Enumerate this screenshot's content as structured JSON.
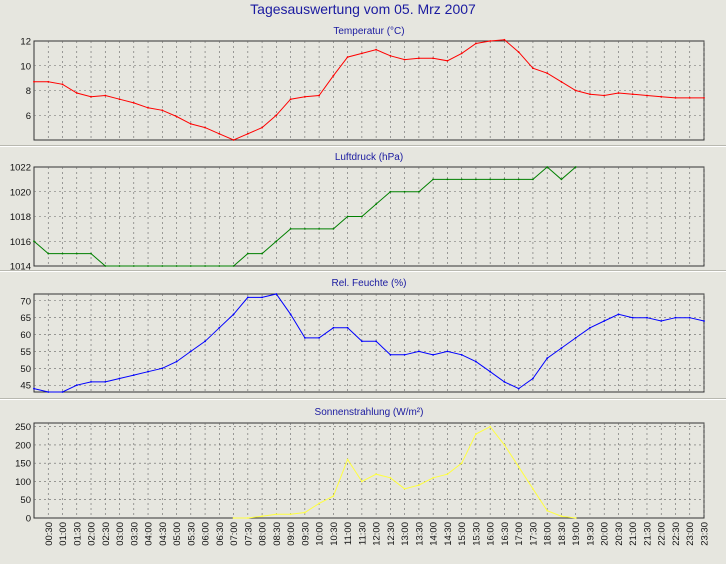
{
  "title": "Tagesauswertung vom 05. Mrz 2007",
  "x_labels": [
    "00:30",
    "01:00",
    "01:30",
    "02:00",
    "02:30",
    "03:00",
    "03:30",
    "04:00",
    "04:30",
    "05:00",
    "05:30",
    "06:00",
    "06:30",
    "07:00",
    "07:30",
    "08:00",
    "08:30",
    "09:00",
    "09:30",
    "10:00",
    "10:30",
    "11:00",
    "11:30",
    "12:00",
    "12:30",
    "13:00",
    "13:30",
    "14:00",
    "14:30",
    "15:00",
    "15:30",
    "16:00",
    "16:30",
    "17:00",
    "17:30",
    "18:00",
    "18:30",
    "19:00",
    "19:30",
    "20:00",
    "20:30",
    "21:00",
    "21:30",
    "22:00",
    "22:30",
    "23:00",
    "23:30"
  ],
  "chart_data": [
    {
      "type": "line",
      "title": "Temperatur (°C)",
      "color": "#ff0000",
      "ylim": [
        4,
        12
      ],
      "yticks": [
        6,
        8,
        10,
        12
      ],
      "grid": true,
      "x": [
        "00:00",
        "00:30",
        "01:00",
        "01:30",
        "02:00",
        "02:30",
        "03:00",
        "03:30",
        "04:00",
        "04:30",
        "05:00",
        "05:30",
        "06:00",
        "06:30",
        "07:00",
        "07:30",
        "08:00",
        "08:30",
        "09:00",
        "09:30",
        "10:00",
        "10:30",
        "11:00",
        "11:30",
        "12:00",
        "12:30",
        "13:00",
        "13:30",
        "14:00",
        "14:30",
        "15:00",
        "15:30",
        "16:00",
        "16:30",
        "17:00",
        "17:30",
        "18:00",
        "18:30",
        "19:00",
        "19:30",
        "20:00",
        "20:30",
        "21:00",
        "21:30",
        "22:00",
        "22:30",
        "23:00",
        "23:30"
      ],
      "values": [
        8.7,
        8.7,
        8.5,
        7.8,
        7.5,
        7.6,
        7.3,
        7.0,
        6.6,
        6.4,
        5.9,
        5.3,
        5.0,
        4.5,
        4.0,
        4.5,
        5.0,
        6.0,
        7.3,
        7.5,
        7.6,
        9.2,
        10.7,
        11.0,
        11.3,
        10.8,
        10.5,
        10.6,
        10.6,
        10.4,
        11.0,
        11.8,
        12.0,
        12.1,
        11.1,
        9.8,
        9.4,
        8.7,
        8.0,
        7.7,
        7.6,
        7.8,
        7.7,
        7.6,
        7.5,
        7.4,
        7.4,
        7.4
      ]
    },
    {
      "type": "line",
      "title": "Luftdruck (hPa)",
      "color": "#008000",
      "ylim": [
        1014,
        1022
      ],
      "yticks": [
        1014,
        1016,
        1018,
        1020,
        1022
      ],
      "grid": true,
      "x": [
        "00:00",
        "00:30",
        "01:00",
        "01:30",
        "02:00",
        "02:30",
        "03:00",
        "03:30",
        "04:00",
        "04:30",
        "05:00",
        "05:30",
        "06:00",
        "06:30",
        "07:00",
        "07:30",
        "08:00",
        "08:30",
        "09:00",
        "09:30",
        "10:00",
        "10:30",
        "11:00",
        "11:30",
        "12:00",
        "12:30",
        "13:00",
        "13:30",
        "14:00",
        "14:30",
        "15:00",
        "15:30",
        "16:00",
        "16:30",
        "17:00",
        "17:30",
        "18:00",
        "18:30",
        "19:00"
      ],
      "values": [
        1016,
        1015,
        1015,
        1015,
        1015,
        1014,
        1014,
        1014,
        1014,
        1014,
        1014,
        1014,
        1014,
        1014,
        1014,
        1015,
        1015,
        1016,
        1017,
        1017,
        1017,
        1017,
        1018,
        1018,
        1019,
        1020,
        1020,
        1020,
        1021,
        1021,
        1021,
        1021,
        1021,
        1021,
        1021,
        1021,
        1022,
        1021,
        1022
      ]
    },
    {
      "type": "line",
      "title": "Rel. Feuchte (%)",
      "color": "#0000ff",
      "ylim": [
        43,
        72
      ],
      "yticks": [
        45,
        50,
        55,
        60,
        65,
        70
      ],
      "grid": true,
      "x": [
        "00:00",
        "00:30",
        "01:00",
        "01:30",
        "02:00",
        "02:30",
        "03:00",
        "03:30",
        "04:00",
        "04:30",
        "05:00",
        "05:30",
        "06:00",
        "06:30",
        "07:00",
        "07:30",
        "08:00",
        "08:30",
        "09:00",
        "09:30",
        "10:00",
        "10:30",
        "11:00",
        "11:30",
        "12:00",
        "12:30",
        "13:00",
        "13:30",
        "14:00",
        "14:30",
        "15:00",
        "15:30",
        "16:00",
        "16:30",
        "17:00",
        "17:30",
        "18:00",
        "18:30",
        "19:00",
        "19:30",
        "20:00",
        "20:30",
        "21:00",
        "21:30",
        "22:00",
        "22:30",
        "23:00",
        "23:30"
      ],
      "values": [
        44,
        43,
        43,
        45,
        46,
        46,
        47,
        48,
        49,
        50,
        52,
        55,
        58,
        62,
        66,
        71,
        71,
        72,
        66,
        59,
        59,
        62,
        62,
        58,
        58,
        54,
        54,
        55,
        54,
        55,
        54,
        52,
        49,
        46,
        44,
        47,
        53,
        56,
        59,
        62,
        64,
        66,
        65,
        65,
        64,
        65,
        65,
        64
      ]
    },
    {
      "type": "line",
      "title": "Sonnenstrahlung (W/m²)",
      "color": "#ffff40",
      "ylim": [
        0,
        260
      ],
      "yticks": [
        0,
        50,
        100,
        150,
        200,
        250
      ],
      "grid": true,
      "x": [
        "07:00",
        "07:30",
        "08:00",
        "08:30",
        "09:00",
        "09:30",
        "10:00",
        "10:30",
        "11:00",
        "11:30",
        "12:00",
        "12:30",
        "13:00",
        "13:30",
        "14:00",
        "14:30",
        "15:00",
        "15:30",
        "16:00",
        "16:30",
        "17:00",
        "17:30",
        "18:00",
        "18:30",
        "19:00"
      ],
      "values": [
        0,
        0,
        5,
        10,
        10,
        15,
        40,
        60,
        160,
        100,
        120,
        110,
        80,
        90,
        110,
        120,
        150,
        230,
        250,
        200,
        140,
        80,
        20,
        5,
        0
      ]
    }
  ]
}
